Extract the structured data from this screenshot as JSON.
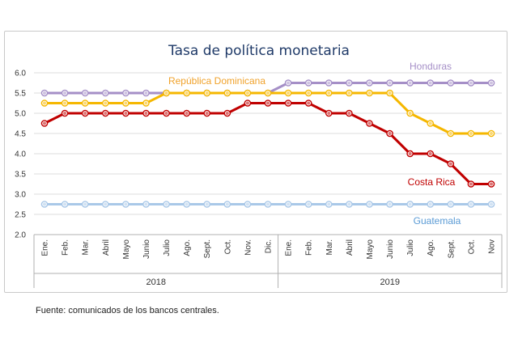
{
  "source_note": "Fuente: comunicados de los bancos centrales.",
  "chart_data": {
    "type": "line",
    "title": "Tasa de política monetaria",
    "xlabel": "",
    "ylabel": "",
    "ylim": [
      2.0,
      6.0
    ],
    "yticks": [
      "2.0",
      "2.5",
      "3.0",
      "3.5",
      "4.0",
      "4.5",
      "5.0",
      "5.5",
      "6.0"
    ],
    "grid": true,
    "categories": [
      "Ene.",
      "Feb.",
      "Mar.",
      "Abril",
      "Mayo",
      "Junio",
      "Julio",
      "Ago.",
      "Sept.",
      "Oct.",
      "Nov.",
      "Dic.",
      "Ene.",
      "Feb.",
      "Mar.",
      "Abril",
      "Mayo",
      "Junio",
      "Julio",
      "Ago.",
      "Sept.",
      "Oct.",
      "Nov"
    ],
    "groups": [
      {
        "label": "2018",
        "count": 12
      },
      {
        "label": "2019",
        "count": 11
      }
    ],
    "series": [
      {
        "name": "Honduras",
        "color": "#a58fc7",
        "values": [
          5.5,
          5.5,
          5.5,
          5.5,
          5.5,
          5.5,
          5.5,
          5.5,
          5.5,
          5.5,
          5.5,
          5.5,
          5.75,
          5.75,
          5.75,
          5.75,
          5.75,
          5.75,
          5.75,
          5.75,
          5.75,
          5.75,
          5.75
        ]
      },
      {
        "name": "República Dominicana",
        "color": "#f5b700",
        "values": [
          5.25,
          5.25,
          5.25,
          5.25,
          5.25,
          5.25,
          5.5,
          5.5,
          5.5,
          5.5,
          5.5,
          5.5,
          5.5,
          5.5,
          5.5,
          5.5,
          5.5,
          5.5,
          5.0,
          4.75,
          4.5,
          4.5,
          4.5
        ]
      },
      {
        "name": "Costa Rica",
        "color": "#c00000",
        "values": [
          4.75,
          5.0,
          5.0,
          5.0,
          5.0,
          5.0,
          5.0,
          5.0,
          5.0,
          5.0,
          5.25,
          5.25,
          5.25,
          5.25,
          5.0,
          5.0,
          4.75,
          4.5,
          4.0,
          4.0,
          3.75,
          3.25,
          3.25
        ]
      },
      {
        "name": "Guatemala",
        "color": "#a9c8e8",
        "values": [
          2.75,
          2.75,
          2.75,
          2.75,
          2.75,
          2.75,
          2.75,
          2.75,
          2.75,
          2.75,
          2.75,
          2.75,
          2.75,
          2.75,
          2.75,
          2.75,
          2.75,
          2.75,
          2.75,
          2.75,
          2.75,
          2.75,
          2.75
        ]
      }
    ]
  }
}
